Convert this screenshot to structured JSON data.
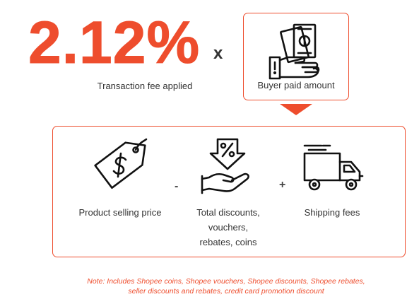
{
  "fee": {
    "rate": "2.12%",
    "operator": "x",
    "label": "Transaction fee applied"
  },
  "buyer": {
    "label": "Buyer paid amount",
    "icon": "cash-in-hand-icon"
  },
  "formula": {
    "minus": "-",
    "plus": "+",
    "items": [
      {
        "label": "Product selling price",
        "icon": "price-tag-icon"
      },
      {
        "label_lines": [
          "Total discounts,",
          "vouchers,",
          "rebates, coins"
        ],
        "icon": "discount-hand-icon"
      },
      {
        "label": "Shipping fees",
        "icon": "delivery-truck-icon"
      }
    ]
  },
  "note": {
    "line1": "Note: Includes Shopee coins, Shopee vouchers, Shopee discounts, Shopee rebates,",
    "line2": "seller discounts and rebates, credit card promotion discount"
  },
  "colors": {
    "accent": "#ee4d2d",
    "text": "#333333"
  }
}
